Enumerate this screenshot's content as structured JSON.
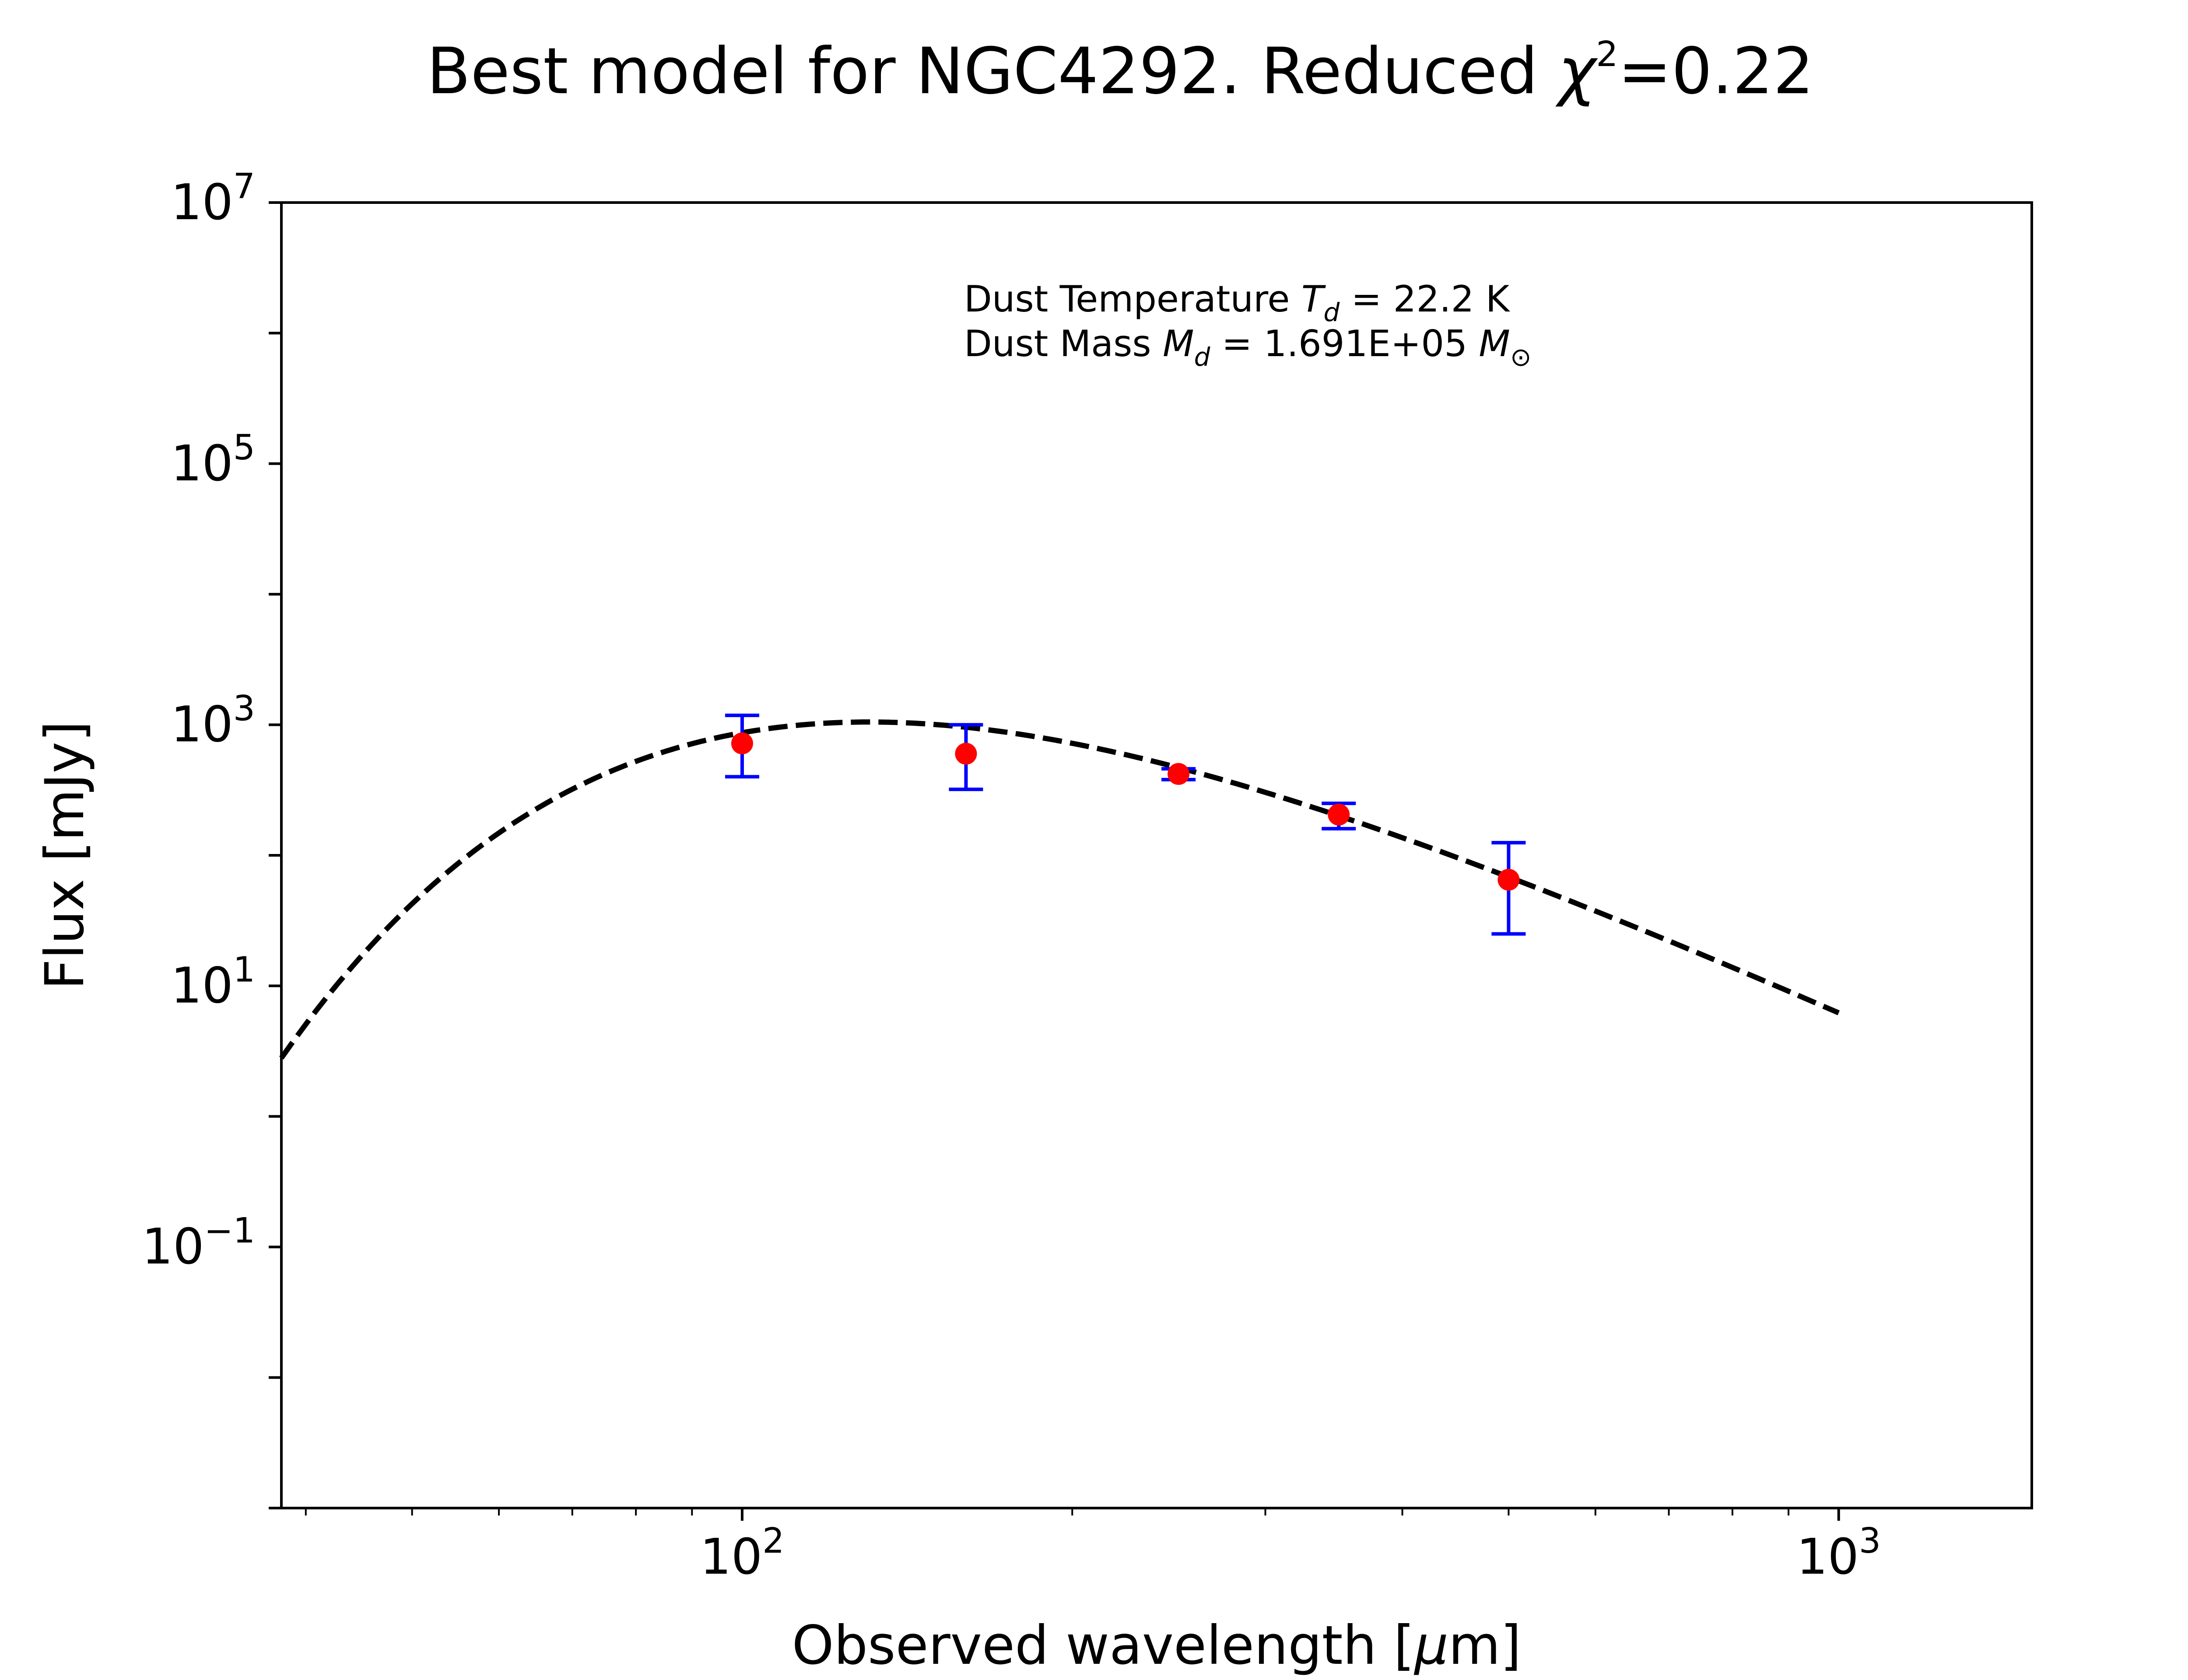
{
  "chart_data": {
    "type": "scatter",
    "title_prefix": "Best model for NGC4292. Reduced ",
    "title_symbol": "χ",
    "title_power": "2",
    "title_suffix": "=0.22",
    "xlabel_prefix": "Observed wavelength [",
    "xlabel_symbol": "μ",
    "xlabel_suffix": "m]",
    "ylabel": "Flux [mJy]",
    "xscale": "log",
    "yscale": "log",
    "xlim": [
      38,
      1500
    ],
    "ylim": [
      0.001,
      10000000
    ],
    "x_ticks": [
      {
        "base": "10",
        "exp": "2",
        "value": 100
      },
      {
        "base": "10",
        "exp": "3",
        "value": 1000
      }
    ],
    "y_ticks": [
      {
        "base": "10",
        "exp": "−1",
        "value": 0.1
      },
      {
        "base": "10",
        "exp": "1",
        "value": 10
      },
      {
        "base": "10",
        "exp": "3",
        "value": 1000
      },
      {
        "base": "10",
        "exp": "5",
        "value": 100000
      },
      {
        "base": "10",
        "exp": "7",
        "value": 10000000
      }
    ],
    "grid": false,
    "annotation": {
      "line1_prefix": "Dust Temperature ",
      "line1_sym": "T",
      "line1_sub": "d",
      "line1_suffix": " = 22.2 K",
      "line2_prefix": "Dust Mass ",
      "line2_sym": "M",
      "line2_sub": "d",
      "line2_mid": " = 1.691E+05 ",
      "line2_sym2": "M",
      "line2_sub2": "⊙"
    },
    "series": [
      {
        "kind": "model_curve",
        "style": "dashed",
        "color": "#000000",
        "temperature_K": 22.2,
        "x_range": [
          38,
          1000
        ],
        "peak_flux": 1050
      },
      {
        "kind": "observations",
        "color": "#ff0000",
        "errorbar_color": "#0000ff",
        "points": [
          {
            "x": 100,
            "y": 720,
            "ylow": 400,
            "yhigh": 1180
          },
          {
            "x": 160,
            "y": 600,
            "ylow": 320,
            "yhigh": 1000
          },
          {
            "x": 250,
            "y": 420,
            "ylow": 380,
            "yhigh": 460
          },
          {
            "x": 350,
            "y": 205,
            "ylow": 160,
            "yhigh": 250
          },
          {
            "x": 500,
            "y": 65,
            "ylow": 25,
            "yhigh": 125
          }
        ]
      }
    ]
  }
}
